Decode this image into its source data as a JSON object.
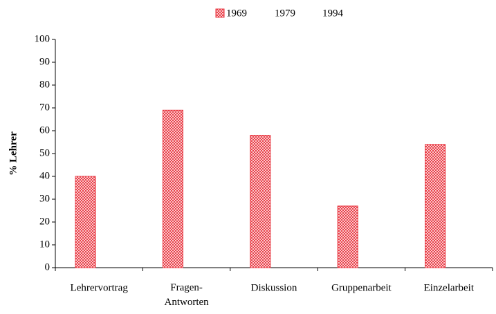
{
  "chart_data": {
    "type": "bar",
    "categories": [
      "Lehrervortrag",
      "Fragen-Antworten",
      "Diskussion",
      "Gruppenarbeit",
      "Einzelarbeit"
    ],
    "series": [
      {
        "name": "1969",
        "color": "#e8323c",
        "values": [
          40,
          69,
          58,
          27,
          54
        ]
      },
      {
        "name": "1979",
        "values": [
          null,
          null,
          null,
          null,
          null
        ]
      },
      {
        "name": "1994",
        "values": [
          null,
          null,
          null,
          null,
          null
        ]
      }
    ],
    "ylabel": "% Lehrer",
    "ylim": [
      0,
      100
    ],
    "yticks": [
      0,
      10,
      20,
      30,
      40,
      50,
      60,
      70,
      80,
      90,
      100
    ],
    "legend": "top"
  }
}
